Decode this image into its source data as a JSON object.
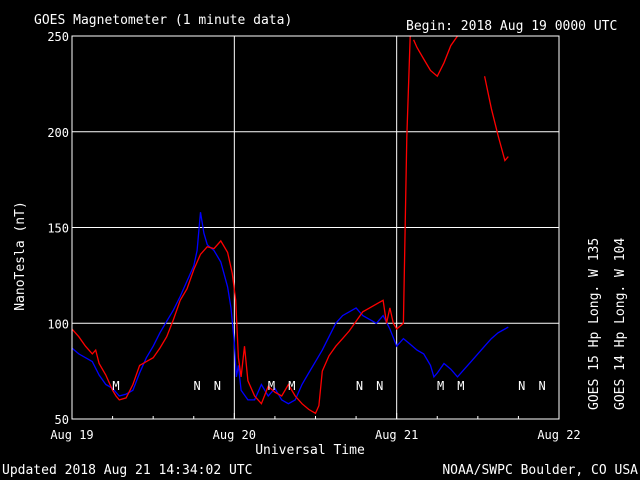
{
  "chart_data": {
    "type": "line",
    "title": "GOES Magnetometer (1 minute data)",
    "begin_label": "Begin:  2018 Aug 19 0000 UTC",
    "xlabel": "Universal Time",
    "ylabel": "NanoTesla (nT)",
    "ylim": [
      50,
      250
    ],
    "yticks": [
      {
        "value": 250,
        "label": "250",
        "color": "#ff0000"
      },
      {
        "value": 200,
        "label": "200",
        "color": "#ffffff"
      },
      {
        "value": 150,
        "label": "150",
        "color": "#ffffff"
      },
      {
        "value": 100,
        "label": "100",
        "color": "#ffffff"
      },
      {
        "value": 50,
        "label": "50",
        "color": "#ffffff"
      }
    ],
    "xlim": [
      0,
      72
    ],
    "xticks": [
      {
        "value": 0,
        "label": "Aug 19"
      },
      {
        "value": 24,
        "label": "Aug 20"
      },
      {
        "value": 48,
        "label": "Aug 21"
      },
      {
        "value": 72,
        "label": "Aug 22"
      }
    ],
    "series": [
      {
        "name": "GOES 15 Hp  Long. W 135",
        "color": "#ff0000",
        "points": [
          [
            0,
            97
          ],
          [
            1,
            93
          ],
          [
            2,
            88
          ],
          [
            3,
            84
          ],
          [
            3.5,
            86
          ],
          [
            4,
            79
          ],
          [
            5,
            73
          ],
          [
            6,
            65
          ],
          [
            6.5,
            62
          ],
          [
            7,
            60
          ],
          [
            8,
            61
          ],
          [
            9,
            68
          ],
          [
            10,
            78
          ],
          [
            11,
            80
          ],
          [
            12,
            82
          ],
          [
            13,
            87
          ],
          [
            14,
            93
          ],
          [
            15,
            102
          ],
          [
            16,
            112
          ],
          [
            17,
            118
          ],
          [
            18,
            128
          ],
          [
            19,
            136
          ],
          [
            20,
            140
          ],
          [
            21,
            139
          ],
          [
            22,
            143
          ],
          [
            23,
            137
          ],
          [
            23.7,
            126
          ],
          [
            24.2,
            112
          ],
          [
            24.6,
            82
          ],
          [
            25,
            72
          ],
          [
            25.5,
            88
          ],
          [
            26,
            70
          ],
          [
            27,
            62
          ],
          [
            28,
            58
          ],
          [
            29,
            67
          ],
          [
            30,
            64
          ],
          [
            31,
            62
          ],
          [
            32,
            68
          ],
          [
            33,
            62
          ],
          [
            34,
            58
          ],
          [
            35,
            55
          ],
          [
            36,
            53
          ],
          [
            36.5,
            57
          ],
          [
            37,
            75
          ],
          [
            38,
            83
          ],
          [
            39,
            88
          ],
          [
            40,
            92
          ],
          [
            41,
            96
          ],
          [
            42,
            101
          ],
          [
            43,
            106
          ],
          [
            44,
            108
          ],
          [
            45,
            110
          ],
          [
            46,
            112
          ],
          [
            46.5,
            100
          ],
          [
            47,
            108
          ],
          [
            47.5,
            100
          ],
          [
            48,
            97
          ],
          [
            49,
            100
          ],
          [
            49.5,
            197
          ],
          [
            50,
            250
          ]
        ],
        "segment2": [
          [
            50.5,
            248
          ],
          [
            51,
            244
          ],
          [
            52,
            238
          ],
          [
            53,
            232
          ],
          [
            54,
            229
          ],
          [
            55,
            236
          ],
          [
            56,
            245
          ],
          [
            57,
            250
          ]
        ],
        "segment3": [
          [
            61,
            229
          ],
          [
            62,
            212
          ],
          [
            63,
            198
          ],
          [
            64,
            185
          ],
          [
            64.5,
            187
          ]
        ]
      },
      {
        "name": "GOES 14 Hp  Long. W 104",
        "color": "#0000ff",
        "points": [
          [
            0,
            87
          ],
          [
            1,
            84
          ],
          [
            2,
            82
          ],
          [
            3,
            80
          ],
          [
            4,
            73
          ],
          [
            5,
            68
          ],
          [
            6,
            66
          ],
          [
            7,
            62
          ],
          [
            8,
            63
          ],
          [
            9,
            65
          ],
          [
            10,
            74
          ],
          [
            11,
            82
          ],
          [
            12,
            88
          ],
          [
            13,
            95
          ],
          [
            14,
            101
          ],
          [
            15,
            107
          ],
          [
            16,
            114
          ],
          [
            17,
            122
          ],
          [
            18,
            130
          ],
          [
            18.5,
            138
          ],
          [
            19,
            158
          ],
          [
            19.5,
            147
          ],
          [
            20,
            141
          ],
          [
            21,
            138
          ],
          [
            22,
            132
          ],
          [
            23,
            119
          ],
          [
            23.5,
            108
          ],
          [
            24,
            90
          ],
          [
            24.3,
            72
          ],
          [
            24.6,
            78
          ],
          [
            25,
            65
          ],
          [
            26,
            60
          ],
          [
            27,
            60
          ],
          [
            28,
            68
          ],
          [
            29,
            62
          ],
          [
            30,
            66
          ],
          [
            31,
            60
          ],
          [
            32,
            58
          ],
          [
            33,
            60
          ],
          [
            34,
            68
          ],
          [
            35,
            74
          ],
          [
            36,
            80
          ],
          [
            37,
            86
          ],
          [
            38,
            93
          ],
          [
            39,
            100
          ],
          [
            40,
            104
          ],
          [
            41,
            106
          ],
          [
            42,
            108
          ],
          [
            43,
            104
          ],
          [
            44,
            102
          ],
          [
            45,
            100
          ],
          [
            46,
            104
          ],
          [
            47,
            97
          ],
          [
            48,
            88
          ],
          [
            49,
            92
          ],
          [
            50,
            89
          ],
          [
            51,
            86
          ],
          [
            52,
            84
          ],
          [
            53,
            78
          ],
          [
            53.5,
            72
          ],
          [
            54,
            74
          ],
          [
            55,
            79
          ],
          [
            56,
            76
          ],
          [
            57,
            72
          ],
          [
            58,
            76
          ],
          [
            59,
            80
          ],
          [
            60,
            84
          ],
          [
            61,
            88
          ],
          [
            62,
            92
          ],
          [
            63,
            95
          ],
          [
            64,
            97
          ],
          [
            64.5,
            98
          ]
        ]
      }
    ],
    "markers": [
      {
        "x": 6.5,
        "label": "M",
        "color": "#ff0000"
      },
      {
        "x": 18.5,
        "label": "N",
        "color": "#0000ff"
      },
      {
        "x": 21.5,
        "label": "N",
        "color": "#ff0000"
      },
      {
        "x": 29.5,
        "label": "M",
        "color": "#0000ff"
      },
      {
        "x": 32.5,
        "label": "M",
        "color": "#ff0000"
      },
      {
        "x": 42.5,
        "label": "N",
        "color": "#0000ff"
      },
      {
        "x": 45.5,
        "label": "N",
        "color": "#ff0000"
      },
      {
        "x": 54.5,
        "label": "M",
        "color": "#0000ff"
      },
      {
        "x": 57.5,
        "label": "M",
        "color": "#ff0000"
      },
      {
        "x": 66.5,
        "label": "N",
        "color": "#0000ff"
      },
      {
        "x": 69.5,
        "label": "N",
        "color": "#ff0000"
      }
    ],
    "legend": [
      {
        "label": "GOES 15 Hp  Long. W 135",
        "color": "#ff0000"
      },
      {
        "label": "GOES 14 Hp  Long. W 104",
        "color": "#0000ff"
      }
    ],
    "grid": true
  },
  "footer": {
    "updated": "Updated 2018 Aug 21 14:34:02 UTC",
    "credit": "NOAA/SWPC Boulder, CO USA"
  }
}
